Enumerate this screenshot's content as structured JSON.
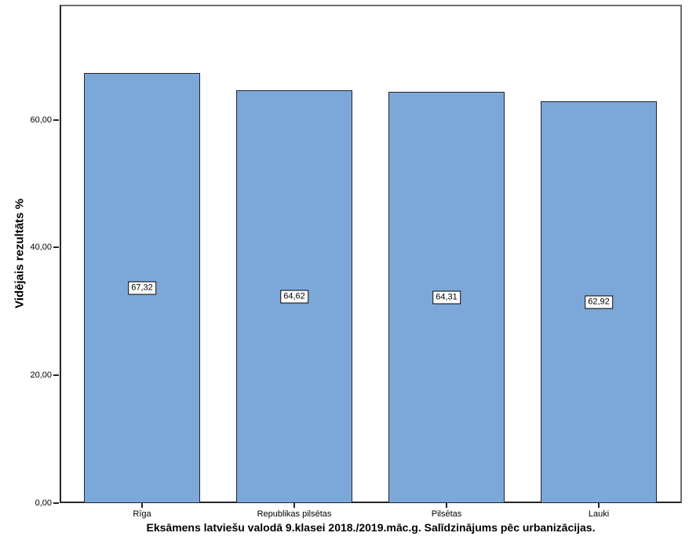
{
  "chart_data": {
    "type": "bar",
    "title": "Eksāmens latviešu valodā 9.klasei 2018./2019.māc.g. Salīdzinājums pēc urbanizācijas.",
    "xlabel": "",
    "ylabel": "Vidējais rezultāts %",
    "categories": [
      "Rīga",
      "Republikas pilsētas",
      "Pilsētas",
      "Lauki"
    ],
    "values": [
      67.32,
      64.62,
      64.31,
      62.92
    ],
    "values_display": [
      "67,32",
      "64,62",
      "64,31",
      "62,92"
    ],
    "ylim": [
      0,
      78
    ],
    "yticks": {
      "values": [
        0,
        20,
        40,
        60
      ],
      "labels": [
        "0,00",
        "20,00",
        "40,00",
        "60,00"
      ]
    },
    "grid": false,
    "legend": "none",
    "colors": {
      "bar_fill": "#7BA8D8",
      "bar_border": "#23252D",
      "axis_line": "#262626",
      "frame_line": "#6F6F6F",
      "value_box_bg": "#FFFFFF",
      "value_box_border": "#000000",
      "text": "#000000",
      "background": "#FFFFFF"
    }
  }
}
